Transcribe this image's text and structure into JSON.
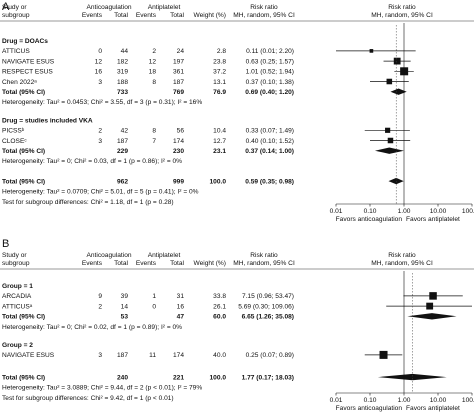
{
  "chart_data": {
    "type": "forest",
    "x_scale": "log",
    "x_ticks": [
      "0.01",
      "0.10",
      "1.00",
      "10.00",
      "100.00"
    ],
    "favors_left": "Favors anticoagulation",
    "favors_right": "Favors antiplatelet",
    "panels": [
      {
        "label": "A",
        "headers": {
          "study": "Study or",
          "study2": "subgroup",
          "group1": "Anticoagulation",
          "group2": "Antiplatelet",
          "events": "Events",
          "total": "Total",
          "weight": "Weight (%)",
          "rr_title": "Risk ratio",
          "rr_method": "MH, random, 95% CI"
        },
        "subgroups": [
          {
            "title": "Drug = DOACs",
            "studies": [
              {
                "name": "ATTICUS",
                "e1": "0",
                "t1": "44",
                "e2": "2",
                "t2": "24",
                "weight": "2.8",
                "ci_text": "0.11 (0.01; 2.20)",
                "rr": 0.11,
                "lo": 0.01,
                "hi": 2.2
              },
              {
                "name": "NAVIGATE ESUS",
                "e1": "12",
                "t1": "182",
                "e2": "12",
                "t2": "197",
                "weight": "23.8",
                "ci_text": "0.63 (0.25; 1.57)",
                "rr": 0.63,
                "lo": 0.25,
                "hi": 1.57
              },
              {
                "name": "RESPECT ESUS",
                "e1": "16",
                "t1": "319",
                "e2": "18",
                "t2": "361",
                "weight": "37.2",
                "ci_text": "1.01 (0.52; 1.94)",
                "rr": 1.01,
                "lo": 0.52,
                "hi": 1.94
              },
              {
                "name": "Chen 2022ᵃ",
                "e1": "3",
                "t1": "188",
                "e2": "8",
                "t2": "187",
                "weight": "13.1",
                "ci_text": "0.37 (0.10; 1.38)",
                "rr": 0.37,
                "lo": 0.1,
                "hi": 1.38
              }
            ],
            "total": {
              "label": "Total (95% CI)",
              "t1": "733",
              "t2": "769",
              "weight": "76.9",
              "ci_text": "0.69 (0.40; 1.20)",
              "rr": 0.69,
              "lo": 0.4,
              "hi": 1.2
            },
            "heterogeneity": "Heterogeneity: Tau² = 0.0453; Chi² = 3.55, df = 3 (p = 0.31); I² = 16%"
          },
          {
            "title": "Drug = studies included VKA",
            "studies": [
              {
                "name": "PICSSᵇ",
                "e1": "2",
                "t1": "42",
                "e2": "8",
                "t2": "56",
                "weight": "10.4",
                "ci_text": "0.33 (0.07; 1.49)",
                "rr": 0.33,
                "lo": 0.07,
                "hi": 1.49
              },
              {
                "name": "CLOSEᶜ",
                "e1": "3",
                "t1": "187",
                "e2": "7",
                "t2": "174",
                "weight": "12.7",
                "ci_text": "0.40 (0.10; 1.52)",
                "rr": 0.4,
                "lo": 0.1,
                "hi": 1.52
              }
            ],
            "total": {
              "label": "Total (95% CI)",
              "t1": "229",
              "t2": "230",
              "weight": "23.1",
              "ci_text": "0.37 (0.14; 1.00)",
              "rr": 0.37,
              "lo": 0.14,
              "hi": 1.0
            },
            "heterogeneity": "Heterogeneity: Tau² = 0; Chi² = 0.03, df = 1 (p = 0.86); I² = 0%"
          }
        ],
        "overall": {
          "label": "Total (95% CI)",
          "t1": "962",
          "t2": "999",
          "weight": "100.0",
          "ci_text": "0.59 (0.35; 0.98)",
          "rr": 0.59,
          "lo": 0.35,
          "hi": 0.98
        },
        "overall_heterogeneity": "Heterogeneity: Tau² = 0.0709; Chi² = 5.01, df = 5 (p = 0.41); I² = 0%",
        "subgroup_test": "Test for subgroup differences: Chi² = 1.18, df = 1 (p = 0.28)"
      },
      {
        "label": "B",
        "headers": {
          "study": "Study or",
          "study2": "subgroup",
          "group1": "Anticoagulation",
          "group2": "Antiplatelet",
          "events": "Events",
          "total": "Total",
          "weight": "Weight (%)",
          "rr_title": "Risk ratio",
          "rr_method": "MH, random, 95% CI"
        },
        "subgroups": [
          {
            "title": "Group = 1",
            "studies": [
              {
                "name": "ARCADIA",
                "e1": "9",
                "t1": "39",
                "e2": "1",
                "t2": "31",
                "weight": "33.8",
                "ci_text": "7.15 (0.96; 53.47)",
                "rr": 7.15,
                "lo": 0.96,
                "hi": 53.47
              },
              {
                "name": "ATTICUSᵃ",
                "e1": "2",
                "t1": "14",
                "e2": "0",
                "t2": "16",
                "weight": "26.1",
                "ci_text": "5.69 (0.30; 109.06)",
                "rr": 5.69,
                "lo": 0.3,
                "hi": 109.06
              }
            ],
            "total": {
              "label": "Total (95% CI)",
              "t1": "53",
              "t2": "47",
              "weight": "60.0",
              "ci_text": "6.65 (1.26; 35.08)",
              "rr": 6.65,
              "lo": 1.26,
              "hi": 35.08
            },
            "heterogeneity": "Heterogeneity: Tau² = 0; Chi² = 0.02, df = 1 (p = 0.89); I² = 0%"
          },
          {
            "title": "Group = 2",
            "studies": [
              {
                "name": "NAVIGATE ESUS",
                "e1": "3",
                "t1": "187",
                "e2": "11",
                "t2": "174",
                "weight": "40.0",
                "ci_text": "0.25 (0.07; 0.89)",
                "rr": 0.25,
                "lo": 0.07,
                "hi": 0.89
              }
            ],
            "total": null,
            "heterogeneity": ""
          }
        ],
        "overall": {
          "label": "Total (95% CI)",
          "t1": "240",
          "t2": "221",
          "weight": "100.0",
          "ci_text": "1.77 (0.17; 18.03)",
          "rr": 1.77,
          "lo": 0.17,
          "hi": 18.03
        },
        "overall_heterogeneity": "Heterogeneity: Tau² = 3.0889; Chi² = 9.44, df = 2 (p < 0.01); I² = 79%",
        "subgroup_test": "Test for subgroup differences: Chi² = 9.42, df = 1 (p < 0.01)"
      }
    ]
  }
}
